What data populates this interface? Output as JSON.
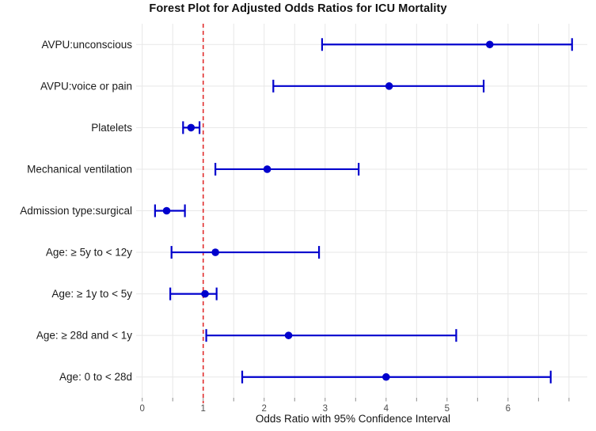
{
  "chart_data": {
    "type": "scatter",
    "subtype": "forest",
    "title": "Forest Plot for Adjusted Odds Ratios for ICU Mortality",
    "xlabel": "Odds Ratio with 95% Confidence Interval",
    "ylabel": "",
    "xlim": [
      -0.1,
      7.3
    ],
    "x_ticks": [
      0,
      1,
      2,
      3,
      4,
      5,
      6
    ],
    "x_minor_step": 0.5,
    "x_grid_max": 7,
    "grid": "on",
    "legend": "none",
    "reference_line": {
      "x": 1,
      "style": "dashed",
      "color": "#E02D2D"
    },
    "colors": {
      "point": "#0000CD",
      "ci": "#0000CD",
      "grid": "#E7E7E7",
      "tick": "#8C8C8C",
      "tick_label": "#4D4D4D",
      "text": "#1A1A1A",
      "background": "#FFFFFF"
    },
    "rows": [
      {
        "label": "AVPU:unconscious",
        "or": 5.7,
        "ci_low": 2.95,
        "ci_high": 7.05
      },
      {
        "label": "AVPU:voice or pain",
        "or": 4.05,
        "ci_low": 2.15,
        "ci_high": 5.6
      },
      {
        "label": "Platelets",
        "or": 0.8,
        "ci_low": 0.67,
        "ci_high": 0.94
      },
      {
        "label": "Mechanical ventilation",
        "or": 2.05,
        "ci_low": 1.2,
        "ci_high": 3.55
      },
      {
        "label": "Admission type:surgical",
        "or": 0.4,
        "ci_low": 0.21,
        "ci_high": 0.7
      },
      {
        "label": "Age: ≥ 5y to < 12y",
        "or": 1.2,
        "ci_low": 0.48,
        "ci_high": 2.9
      },
      {
        "label": "Age: ≥ 1y to < 5y",
        "or": 1.03,
        "ci_low": 0.46,
        "ci_high": 1.22
      },
      {
        "label": "Age: ≥ 28d and < 1y",
        "or": 2.4,
        "ci_low": 1.05,
        "ci_high": 5.15
      },
      {
        "label": "Age: 0 to < 28d",
        "or": 4.0,
        "ci_low": 1.64,
        "ci_high": 6.7
      }
    ]
  }
}
